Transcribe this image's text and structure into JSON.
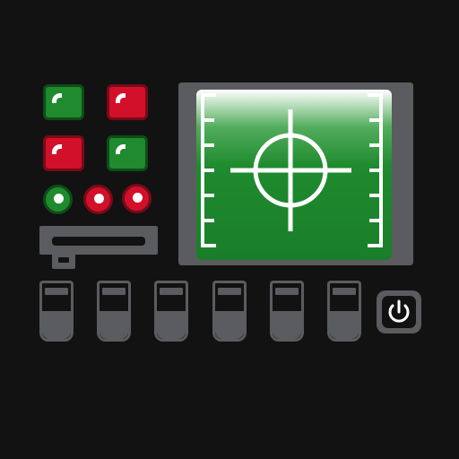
{
  "colors": {
    "background": "#121212",
    "panel_gray": "#5b5c60",
    "green": "#1f8a2e",
    "green_border": "#0d4d17",
    "red": "#d2102a",
    "red_border": "#7a0a18",
    "screen_green": "#1f8a2e",
    "reticle": "#ffffff"
  },
  "indicators": {
    "square_buttons": [
      {
        "name": "indicator-top-left",
        "color": "green"
      },
      {
        "name": "indicator-top-right",
        "color": "red"
      },
      {
        "name": "indicator-mid-left",
        "color": "red"
      },
      {
        "name": "indicator-mid-right",
        "color": "green"
      }
    ],
    "lights": [
      {
        "name": "led-left",
        "color": "green"
      },
      {
        "name": "led-middle",
        "color": "red"
      },
      {
        "name": "led-right",
        "color": "red"
      }
    ]
  },
  "icons": {
    "crosshair": "crosshair-icon",
    "power": "power-icon"
  },
  "levers": {
    "count": 6
  }
}
